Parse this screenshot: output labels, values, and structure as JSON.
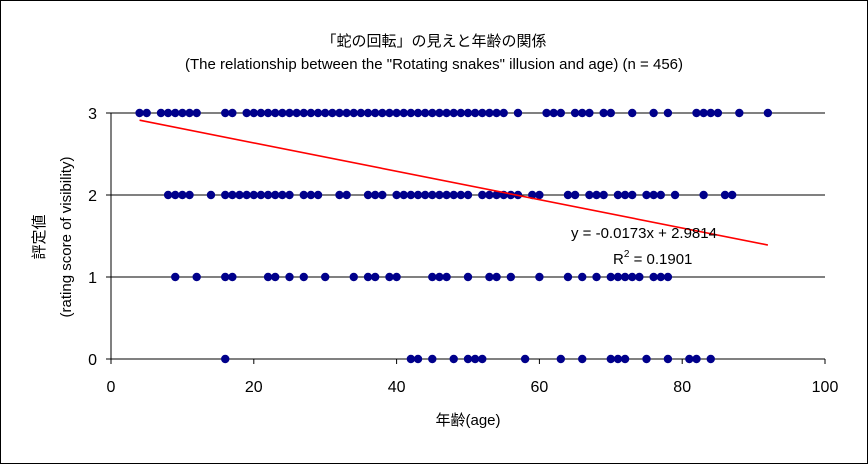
{
  "chart_data": {
    "type": "scatter",
    "title": "「蛇の回転」の見えと年齢の関係",
    "subtitle": "(The relationship between the \"Rotating snakes\" illusion and age) (n = 456)",
    "xlabel": "年齢(age)",
    "ylabel_ja": "評定値",
    "ylabel_en": "(rating score of visibility)",
    "xlim": [
      0,
      100
    ],
    "ylim": [
      0,
      3
    ],
    "xticks": [
      "0",
      "20",
      "40",
      "60",
      "80",
      "100"
    ],
    "yticks": [
      "0",
      "1",
      "2",
      "3"
    ],
    "grid": "horizontal",
    "series": [
      {
        "color": "#00008b",
        "points": [
          [
            4,
            3
          ],
          [
            5,
            3
          ],
          [
            7,
            3
          ],
          [
            8,
            3
          ],
          [
            9,
            3
          ],
          [
            10,
            3
          ],
          [
            11,
            3
          ],
          [
            12,
            3
          ],
          [
            16,
            3
          ],
          [
            17,
            3
          ],
          [
            19,
            3
          ],
          [
            20,
            3
          ],
          [
            21,
            3
          ],
          [
            22,
            3
          ],
          [
            23,
            3
          ],
          [
            24,
            3
          ],
          [
            25,
            3
          ],
          [
            26,
            3
          ],
          [
            27,
            3
          ],
          [
            28,
            3
          ],
          [
            29,
            3
          ],
          [
            30,
            3
          ],
          [
            31,
            3
          ],
          [
            32,
            3
          ],
          [
            33,
            3
          ],
          [
            34,
            3
          ],
          [
            35,
            3
          ],
          [
            36,
            3
          ],
          [
            37,
            3
          ],
          [
            38,
            3
          ],
          [
            39,
            3
          ],
          [
            40,
            3
          ],
          [
            41,
            3
          ],
          [
            42,
            3
          ],
          [
            43,
            3
          ],
          [
            44,
            3
          ],
          [
            45,
            3
          ],
          [
            46,
            3
          ],
          [
            47,
            3
          ],
          [
            48,
            3
          ],
          [
            49,
            3
          ],
          [
            50,
            3
          ],
          [
            51,
            3
          ],
          [
            52,
            3
          ],
          [
            53,
            3
          ],
          [
            54,
            3
          ],
          [
            55,
            3
          ],
          [
            57,
            3
          ],
          [
            61,
            3
          ],
          [
            62,
            3
          ],
          [
            63,
            3
          ],
          [
            65,
            3
          ],
          [
            66,
            3
          ],
          [
            67,
            3
          ],
          [
            69,
            3
          ],
          [
            70,
            3
          ],
          [
            73,
            3
          ],
          [
            76,
            3
          ],
          [
            78,
            3
          ],
          [
            82,
            3
          ],
          [
            83,
            3
          ],
          [
            84,
            3
          ],
          [
            85,
            3
          ],
          [
            88,
            3
          ],
          [
            92,
            3
          ],
          [
            8,
            2
          ],
          [
            9,
            2
          ],
          [
            10,
            2
          ],
          [
            11,
            2
          ],
          [
            14,
            2
          ],
          [
            16,
            2
          ],
          [
            17,
            2
          ],
          [
            18,
            2
          ],
          [
            19,
            2
          ],
          [
            20,
            2
          ],
          [
            21,
            2
          ],
          [
            22,
            2
          ],
          [
            23,
            2
          ],
          [
            24,
            2
          ],
          [
            25,
            2
          ],
          [
            27,
            2
          ],
          [
            28,
            2
          ],
          [
            29,
            2
          ],
          [
            32,
            2
          ],
          [
            33,
            2
          ],
          [
            36,
            2
          ],
          [
            37,
            2
          ],
          [
            38,
            2
          ],
          [
            40,
            2
          ],
          [
            41,
            2
          ],
          [
            42,
            2
          ],
          [
            43,
            2
          ],
          [
            44,
            2
          ],
          [
            45,
            2
          ],
          [
            46,
            2
          ],
          [
            47,
            2
          ],
          [
            48,
            2
          ],
          [
            49,
            2
          ],
          [
            50,
            2
          ],
          [
            52,
            2
          ],
          [
            53,
            2
          ],
          [
            54,
            2
          ],
          [
            55,
            2
          ],
          [
            56,
            2
          ],
          [
            57,
            2
          ],
          [
            59,
            2
          ],
          [
            60,
            2
          ],
          [
            64,
            2
          ],
          [
            65,
            2
          ],
          [
            67,
            2
          ],
          [
            68,
            2
          ],
          [
            69,
            2
          ],
          [
            71,
            2
          ],
          [
            72,
            2
          ],
          [
            73,
            2
          ],
          [
            75,
            2
          ],
          [
            76,
            2
          ],
          [
            77,
            2
          ],
          [
            79,
            2
          ],
          [
            83,
            2
          ],
          [
            86,
            2
          ],
          [
            87,
            2
          ],
          [
            9,
            1
          ],
          [
            12,
            1
          ],
          [
            16,
            1
          ],
          [
            17,
            1
          ],
          [
            22,
            1
          ],
          [
            23,
            1
          ],
          [
            25,
            1
          ],
          [
            27,
            1
          ],
          [
            30,
            1
          ],
          [
            34,
            1
          ],
          [
            36,
            1
          ],
          [
            37,
            1
          ],
          [
            39,
            1
          ],
          [
            40,
            1
          ],
          [
            45,
            1
          ],
          [
            46,
            1
          ],
          [
            47,
            1
          ],
          [
            50,
            1
          ],
          [
            53,
            1
          ],
          [
            54,
            1
          ],
          [
            56,
            1
          ],
          [
            60,
            1
          ],
          [
            64,
            1
          ],
          [
            66,
            1
          ],
          [
            68,
            1
          ],
          [
            70,
            1
          ],
          [
            71,
            1
          ],
          [
            72,
            1
          ],
          [
            73,
            1
          ],
          [
            74,
            1
          ],
          [
            76,
            1
          ],
          [
            77,
            1
          ],
          [
            78,
            1
          ],
          [
            16,
            0
          ],
          [
            42,
            0
          ],
          [
            43,
            0
          ],
          [
            45,
            0
          ],
          [
            48,
            0
          ],
          [
            50,
            0
          ],
          [
            51,
            0
          ],
          [
            52,
            0
          ],
          [
            58,
            0
          ],
          [
            63,
            0
          ],
          [
            66,
            0
          ],
          [
            70,
            0
          ],
          [
            71,
            0
          ],
          [
            72,
            0
          ],
          [
            75,
            0
          ],
          [
            78,
            0
          ],
          [
            81,
            0
          ],
          [
            82,
            0
          ],
          [
            84,
            0
          ]
        ]
      }
    ],
    "trendline": {
      "color": "#ff0000",
      "slope": -0.0173,
      "intercept": 2.9814,
      "x_range": [
        4,
        92
      ],
      "equation": "y = -0.0173x + 2.9814",
      "r2_label": "R",
      "r2_value": " = 0.1901"
    }
  }
}
